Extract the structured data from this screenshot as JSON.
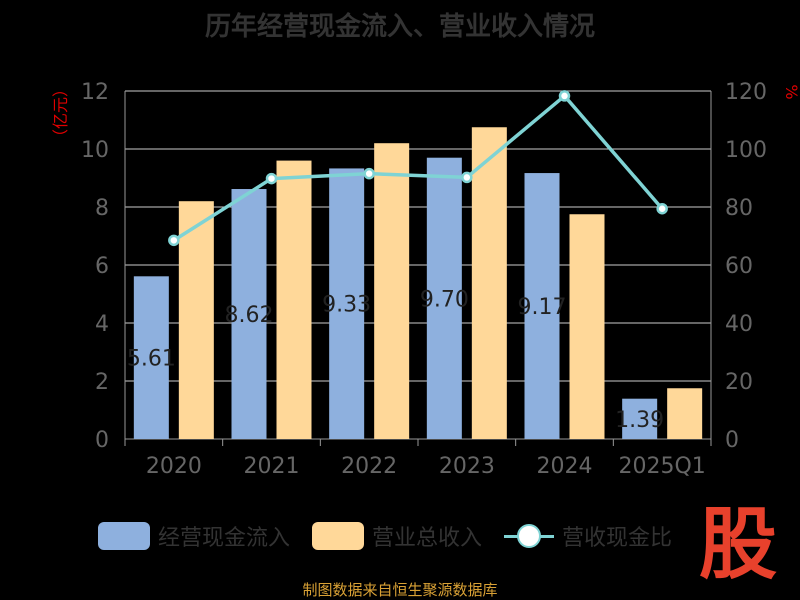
{
  "chart_data": {
    "type": "bar",
    "title": "历年经营现金流入、营业收入情况",
    "categories": [
      "2020",
      "2021",
      "2022",
      "2023",
      "2024",
      "2025Q1"
    ],
    "series": [
      {
        "name": "经营现金流入",
        "axis": "left",
        "kind": "bar",
        "color": "#8eb0de",
        "values": [
          5.61,
          8.62,
          9.33,
          9.7,
          9.17,
          1.39
        ],
        "labels": [
          "5.61",
          "8.62",
          "9.33",
          "9.70",
          "9.17",
          "1.39"
        ]
      },
      {
        "name": "营业总收入",
        "axis": "left",
        "kind": "bar",
        "color": "#ffd899",
        "values": [
          8.2,
          9.6,
          10.2,
          10.75,
          7.75,
          1.75
        ]
      },
      {
        "name": "营收现金比",
        "axis": "right",
        "kind": "line",
        "color": "#7fd3d4",
        "values": [
          68.5,
          89.8,
          91.5,
          90.2,
          118.3,
          79.4
        ]
      }
    ],
    "ylabel": "（亿元）",
    "y2label": "%",
    "ylim": [
      0,
      12
    ],
    "yticks": [
      0,
      2,
      4,
      6,
      8,
      10,
      12
    ],
    "y2lim": [
      0,
      120
    ],
    "y2ticks": [
      0,
      20,
      40,
      60,
      80,
      100,
      120
    ],
    "grid": true,
    "legend_position": "bottom"
  },
  "source_note": "制图数据来自恒生聚源数据库",
  "watermark": "股",
  "colors": {
    "axis_text": "#666666",
    "ylabel": "#e00000",
    "grid": "#cccccc",
    "title": "#333333"
  }
}
